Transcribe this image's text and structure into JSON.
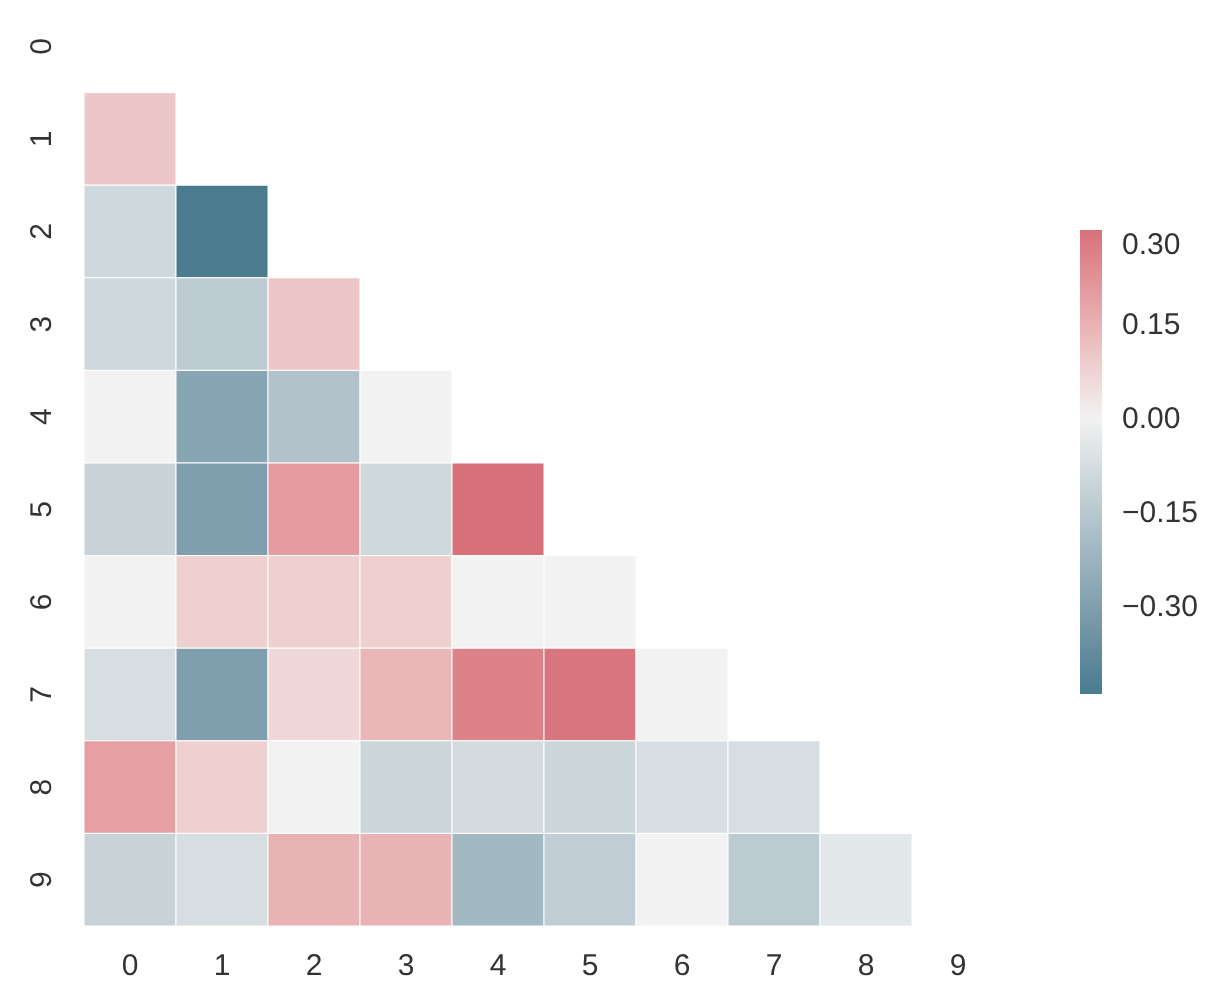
{
  "chart_data": {
    "type": "heatmap",
    "categories": [
      "0",
      "1",
      "2",
      "3",
      "4",
      "5",
      "6",
      "7",
      "8",
      "9"
    ],
    "y_categories": [
      "0",
      "1",
      "2",
      "3",
      "4",
      "5",
      "6",
      "7",
      "8",
      "9"
    ],
    "cells": [
      [
        null,
        null,
        null,
        null,
        null,
        null,
        null,
        null,
        null,
        null
      ],
      [
        0.1,
        null,
        null,
        null,
        null,
        null,
        null,
        null,
        null,
        null
      ],
      [
        -0.09,
        -0.44,
        null,
        null,
        null,
        null,
        null,
        null,
        null,
        null
      ],
      [
        -0.09,
        -0.14,
        0.1,
        null,
        null,
        null,
        null,
        null,
        null,
        null
      ],
      [
        0.0,
        -0.28,
        -0.17,
        0.0,
        null,
        null,
        null,
        null,
        null,
        null
      ],
      [
        -0.11,
        -0.3,
        0.2,
        -0.09,
        0.3,
        null,
        null,
        null,
        null,
        null
      ],
      [
        0.0,
        0.08,
        0.08,
        0.08,
        0.0,
        0.0,
        null,
        null,
        null,
        null
      ],
      [
        -0.07,
        -0.3,
        0.06,
        0.14,
        0.26,
        0.29,
        0.0,
        null,
        null,
        null
      ],
      [
        0.19,
        0.08,
        0.0,
        -0.1,
        -0.08,
        -0.1,
        -0.07,
        -0.07,
        null,
        null
      ],
      [
        -0.11,
        -0.07,
        0.15,
        0.15,
        -0.21,
        -0.13,
        0.0,
        -0.14,
        -0.04,
        null
      ]
    ],
    "clim": [
      -0.44,
      0.3
    ],
    "colors": [
      "#4a7b8f",
      "#f2f2f2",
      "#d8707a"
    ],
    "cticks": [
      {
        "value": 0.3,
        "label": "0.30"
      },
      {
        "value": 0.15,
        "label": "0.15"
      },
      {
        "value": 0,
        "label": "0.00"
      },
      {
        "value": -0.15,
        "label": "−0.15"
      },
      {
        "value": -0.3,
        "label": "−0.30"
      }
    ],
    "grid": false
  }
}
